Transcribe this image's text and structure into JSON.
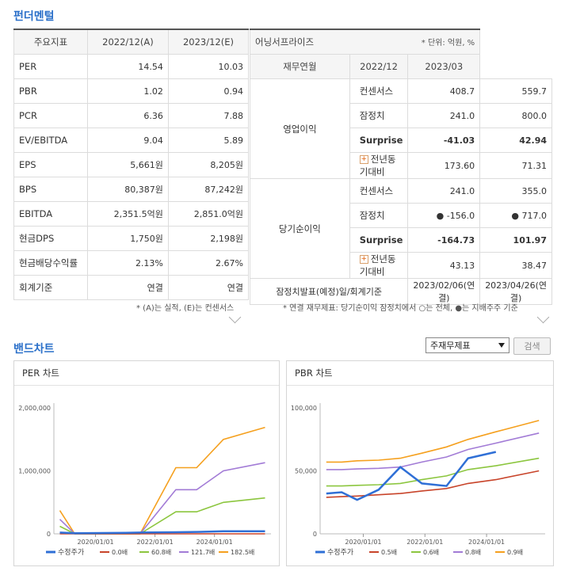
{
  "fundamental": {
    "title": "펀더멘털",
    "headers": [
      "주요지표",
      "2022/12(A)",
      "2023/12(E)"
    ],
    "rows": [
      {
        "label": "PER",
        "a": "14.54",
        "e": "10.03"
      },
      {
        "label": "PBR",
        "a": "1.02",
        "e": "0.94"
      },
      {
        "label": "PCR",
        "a": "6.36",
        "e": "7.88"
      },
      {
        "label": "EV/EBITDA",
        "a": "9.04",
        "e": "5.89"
      },
      {
        "label": "EPS",
        "a": "5,661원",
        "e": "8,205원"
      },
      {
        "label": "BPS",
        "a": "80,387원",
        "e": "87,242원"
      },
      {
        "label": "EBITDA",
        "a": "2,351.5억원",
        "e": "2,851.0억원"
      },
      {
        "label": "현금DPS",
        "a": "1,750원",
        "e": "2,198원"
      },
      {
        "label": "현금배당수익률",
        "a": "2.13%",
        "e": "2.67%"
      },
      {
        "label": "회계기준",
        "a": "연결",
        "e": "연결"
      }
    ],
    "note": "* (A)는 실적, (E)는 컨센서스"
  },
  "earnings": {
    "title": "어닝서프라이즈",
    "unit": "* 단위: 억원, %",
    "headers": [
      "재무연월",
      "2022/12",
      "2023/03"
    ],
    "groups": [
      {
        "name": "영업이익",
        "rows": [
          {
            "label": "컨센서스",
            "v1": "408.7",
            "v2": "559.7",
            "type": "plain"
          },
          {
            "label": "잠정치",
            "v1": "241.0",
            "v2": "800.0",
            "type": "plain"
          },
          {
            "label": "Surprise",
            "v1": "-41.03",
            "v2": "42.94",
            "type": "surprise"
          },
          {
            "label": "전년동기대비",
            "v1": "173.60",
            "v2": "71.31",
            "type": "yoy"
          }
        ]
      },
      {
        "name": "당기순이익",
        "rows": [
          {
            "label": "컨센서스",
            "v1": "241.0",
            "v2": "355.0",
            "type": "plain"
          },
          {
            "label": "잠정치",
            "v1": "● -156.0",
            "v2": "● 717.0",
            "type": "plain"
          },
          {
            "label": "Surprise",
            "v1": "-164.73",
            "v2": "101.97",
            "type": "surprise"
          },
          {
            "label": "전년동기대비",
            "v1": "43.13",
            "v2": "38.47",
            "type": "yoy"
          }
        ]
      }
    ],
    "footer": {
      "label": "잠정치발표(예정)일/회계기준",
      "v1": "2023/02/06(연결)",
      "v2": "2023/04/26(연결)"
    },
    "note": "* 연결 재무제표: 당기순이익 잠정치에서 ○는 전체, ●는 지배주주 기준"
  },
  "band": {
    "title": "밴드차트",
    "select_value": "주재무제표",
    "search_label": "검색"
  },
  "chart_data": [
    {
      "type": "line",
      "title": "PER 차트",
      "x_ticks": [
        "2020/01/01",
        "2022/01/01",
        "2024/01/01"
      ],
      "y_ticks": [
        "2,000,000",
        "1,000,000",
        "0"
      ],
      "ylim": [
        0,
        2000000
      ],
      "x": [
        2018.8,
        2019.3,
        2021.0,
        2021.5,
        2022.7,
        2023.4,
        2024.3,
        2025.7
      ],
      "series": [
        {
          "name": "수정주가",
          "color": "#2f6fd6",
          "values": [
            20000,
            10000,
            15000,
            20000,
            25000,
            30000,
            40000,
            40000
          ]
        },
        {
          "name": "0.0배",
          "color": "#c8442a",
          "values": [
            0,
            0,
            0,
            0,
            0,
            0,
            0,
            0
          ]
        },
        {
          "name": "60.8배",
          "color": "#8cc63f",
          "values": [
            120000,
            0,
            0,
            0,
            350000,
            350000,
            500000,
            570000
          ]
        },
        {
          "name": "121.7배",
          "color": "#a27bd6",
          "values": [
            230000,
            0,
            0,
            0,
            700000,
            700000,
            1000000,
            1130000
          ]
        },
        {
          "name": "182.5배",
          "color": "#f5a01e",
          "values": [
            370000,
            0,
            0,
            0,
            1050000,
            1050000,
            1500000,
            1690000
          ]
        }
      ]
    },
    {
      "type": "line",
      "title": "PBR 차트",
      "x_ticks": [
        "2020/01/01",
        "2022/01/01",
        "2024/01/01"
      ],
      "y_ticks": [
        "100,000",
        "50,000",
        "0"
      ],
      "ylim": [
        0,
        100000
      ],
      "x": [
        2018.8,
        2019.3,
        2019.8,
        2020.5,
        2021.2,
        2021.9,
        2022.7,
        2023.4,
        2024.3,
        2025.7
      ],
      "series": [
        {
          "name": "수정주가",
          "color": "#2f6fd6",
          "values": [
            32000,
            33000,
            27000,
            35000,
            53000,
            40000,
            38000,
            60000,
            65000,
            null
          ]
        },
        {
          "name": "0.5배",
          "color": "#c8442a",
          "values": [
            29000,
            29500,
            30000,
            31000,
            32000,
            34000,
            36000,
            40000,
            43000,
            50000
          ]
        },
        {
          "name": "0.6배",
          "color": "#8cc63f",
          "values": [
            38000,
            38000,
            38500,
            39000,
            40000,
            43000,
            46000,
            51000,
            54000,
            60000
          ]
        },
        {
          "name": "0.8배",
          "color": "#a27bd6",
          "values": [
            51000,
            51000,
            51500,
            52000,
            53000,
            57000,
            61000,
            67000,
            72000,
            80000
          ]
        },
        {
          "name": "0.9배",
          "color": "#f5a01e",
          "values": [
            57000,
            57000,
            58000,
            58500,
            60000,
            64000,
            69000,
            75000,
            81000,
            90000
          ]
        }
      ]
    }
  ]
}
